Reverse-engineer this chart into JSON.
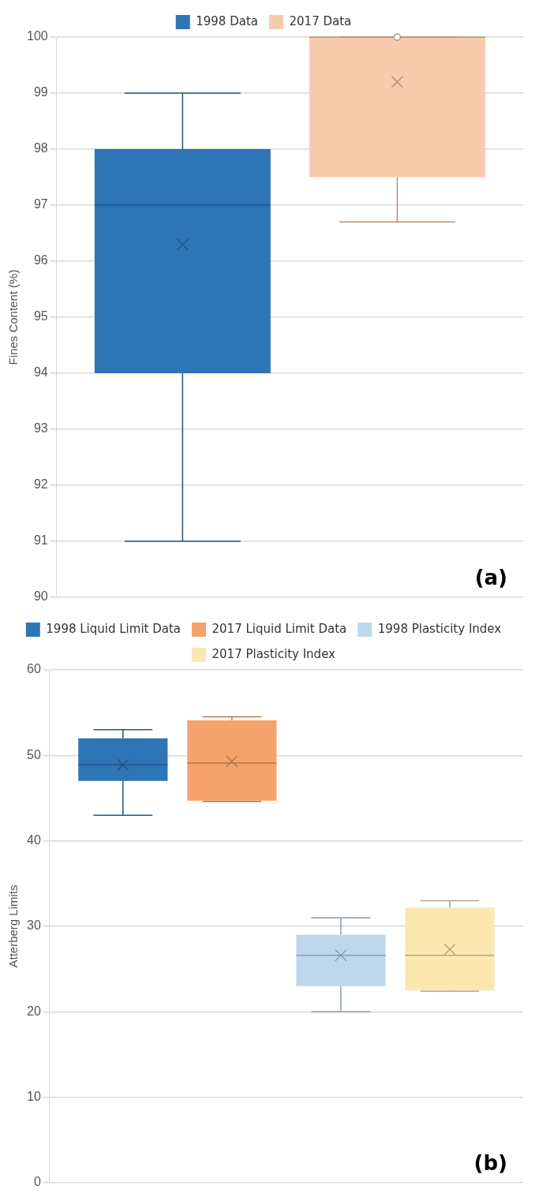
{
  "chart_data": [
    {
      "type": "box",
      "ylabel": "Fines Content (%)",
      "categories": [
        null
      ],
      "legend": "top",
      "grid": "y",
      "tick_labels": "y",
      "ylim": [
        90,
        100
      ],
      "yticks": [
        90,
        91,
        92,
        93,
        94,
        95,
        96,
        97,
        98,
        99,
        100
      ],
      "annotations": [
        "(a)"
      ],
      "series": [
        {
          "name": "1998 Data",
          "color": "#2e75b6",
          "boxes": [
            {
              "low": 91,
              "q1": 94,
              "median": 97,
              "q3": 98,
              "high": 99,
              "mean": 96.3
            }
          ]
        },
        {
          "name": "2017 Data",
          "color": "#f8cbad",
          "boxes": [
            {
              "low": 96.7,
              "q1": 97.5,
              "median": 100,
              "q3": 100,
              "high": 100,
              "mean": 99.2,
              "outliers": [
                100
              ]
            }
          ]
        }
      ]
    },
    {
      "type": "box",
      "ylabel": "Atterberg Limits",
      "categories": [
        null
      ],
      "legend": "top",
      "grid": "y",
      "tick_labels": "y",
      "ylim": [
        0,
        60
      ],
      "yticks": [
        0,
        10,
        20,
        30,
        40,
        50,
        60
      ],
      "annotations": [
        "(b)"
      ],
      "series": [
        {
          "name": "1998 Liquid Limit Data",
          "color": "#2e75b6",
          "boxes": [
            {
              "low": 43,
              "q1": 47,
              "median": 48.9,
              "q3": 52,
              "high": 53,
              "mean": 48.9
            }
          ]
        },
        {
          "name": "2017 Liquid Limit Data",
          "color": "#f4a36a",
          "boxes": [
            {
              "low": 44.6,
              "q1": 44.7,
              "median": 49.1,
              "q3": 54.1,
              "high": 54.5,
              "mean": 49.3
            }
          ]
        },
        {
          "name": "1998 Plasticity Index",
          "color": "#bdd7ee",
          "boxes": [
            {
              "low": 20,
              "q1": 23,
              "median": 26.6,
              "q3": 29,
              "high": 31,
              "mean": 26.6
            }
          ]
        },
        {
          "name": "2017 Plasticity Index",
          "color": "#fbe8b0",
          "boxes": [
            {
              "low": 22.4,
              "q1": 22.5,
              "median": 26.6,
              "q3": 32.2,
              "high": 33,
              "mean": 27.3
            }
          ]
        }
      ]
    }
  ]
}
